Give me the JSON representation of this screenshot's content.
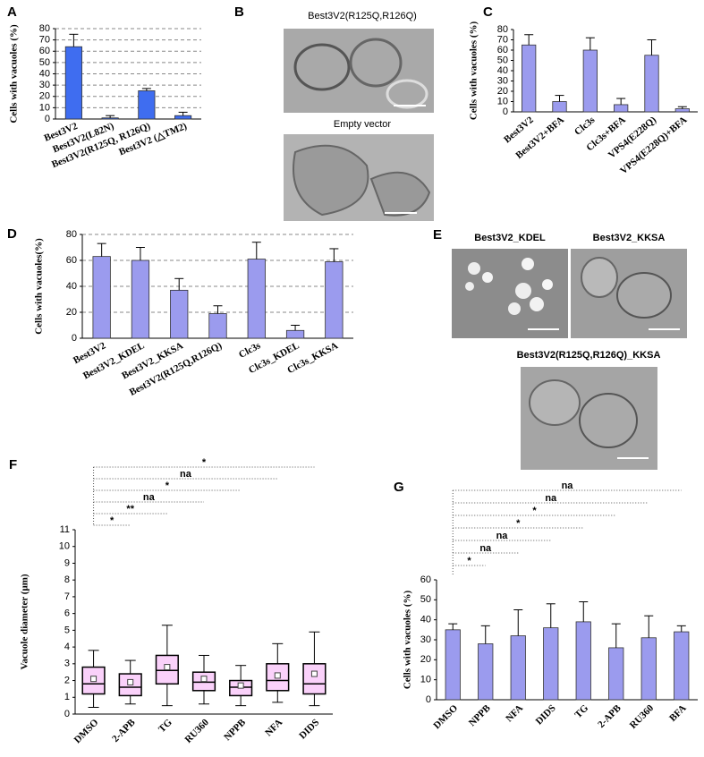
{
  "chart_data": [
    {
      "type": "bar",
      "panel": "A",
      "y_label": "Cells with vacuoles (%)",
      "categories": [
        "Best3V2",
        "Best3V2(L82N)",
        "Best3V2(R125Q, R126Q)",
        "Best3V2 (△TM2)"
      ],
      "values": [
        64,
        1,
        25,
        3
      ],
      "errors": [
        11,
        2,
        2,
        3
      ],
      "color": "#3f6df0",
      "ylim": [
        0,
        80
      ],
      "yticks": [
        0,
        10,
        20,
        30,
        40,
        50,
        60,
        70,
        80
      ],
      "grid": true
    },
    {
      "type": "bar",
      "panel": "C",
      "y_label": "Cells with vacuoles (%)",
      "categories": [
        "Best3V2",
        "Best3V2+BFA",
        "Clc3s",
        "Clc3s+BFA",
        "VPS4(E228Q)",
        "VPS4(E228Q)+BFA"
      ],
      "values": [
        65,
        10,
        60,
        7,
        55,
        3
      ],
      "errors": [
        10,
        6,
        12,
        6,
        15,
        2
      ],
      "color": "#9b9bee",
      "ylim": [
        0,
        80
      ],
      "yticks": [
        0,
        10,
        20,
        30,
        40,
        50,
        60,
        70,
        80
      ],
      "grid": false
    },
    {
      "type": "bar",
      "panel": "D",
      "y_label": "Cells with vacuoles(%)",
      "categories": [
        "Best3V2",
        "Best3V2_KDEL",
        "Best3V2_KKSA",
        "Best3V2(R125Q,R126Q)",
        "Clc3s",
        "Clc3s_KDEL",
        "Clc3s_KKSA"
      ],
      "values": [
        63,
        60,
        37,
        19,
        61,
        6,
        59
      ],
      "errors": [
        10,
        10,
        9,
        6,
        13,
        4,
        10
      ],
      "color": "#9b9bee",
      "ylim": [
        0,
        80
      ],
      "yticks": [
        0,
        20,
        40,
        60,
        80
      ],
      "grid": true
    },
    {
      "type": "box",
      "panel": "F",
      "y_label": "Vacuole diameter (μm)",
      "categories": [
        "DMSO",
        "2-APB",
        "TG",
        "RU360",
        "NPPB",
        "NFA",
        "DIDS"
      ],
      "whisker_low": [
        0.4,
        0.6,
        0.5,
        0.6,
        0.5,
        0.7,
        0.5
      ],
      "q1": [
        1.2,
        1.1,
        1.8,
        1.4,
        1.1,
        1.4,
        1.2
      ],
      "median": [
        1.8,
        1.6,
        2.6,
        1.9,
        1.6,
        2.0,
        1.8
      ],
      "q3": [
        2.8,
        2.4,
        3.5,
        2.5,
        2.0,
        3.0,
        3.0
      ],
      "whisker_high": [
        3.8,
        3.2,
        5.3,
        3.5,
        2.9,
        4.2,
        4.9
      ],
      "mean": [
        2.1,
        1.9,
        2.8,
        2.1,
        1.7,
        2.3,
        2.4
      ],
      "color": "#f07cf0",
      "ylim": [
        0,
        11
      ],
      "yticks": [
        0,
        1,
        2,
        3,
        4,
        5,
        6,
        7,
        8,
        9,
        10,
        11
      ],
      "grid": false,
      "annotations": [
        {
          "text": "*",
          "to": "DIDS"
        },
        {
          "text": "na",
          "to": "NFA"
        },
        {
          "text": "*",
          "to": "NPPB"
        },
        {
          "text": "na",
          "to": "RU360"
        },
        {
          "text": "**",
          "to": "TG"
        },
        {
          "text": "*",
          "to": "2-APB"
        }
      ]
    },
    {
      "type": "bar",
      "panel": "G",
      "y_label": "Cells with vacuoles (%)",
      "categories": [
        "DMSO",
        "NPPB",
        "NFA",
        "DIDS",
        "TG",
        "2-APB",
        "RU360",
        "BFA"
      ],
      "values": [
        35,
        28,
        32,
        36,
        39,
        26,
        31,
        34
      ],
      "errors": [
        3,
        9,
        13,
        12,
        10,
        12,
        11,
        3
      ],
      "color": "#9b9bee",
      "ylim": [
        0,
        60
      ],
      "yticks": [
        0,
        10,
        20,
        30,
        40,
        50,
        60
      ],
      "grid": false,
      "annotations": [
        {
          "text": "na",
          "to": "BFA"
        },
        {
          "text": "na",
          "to": "RU360"
        },
        {
          "text": "*",
          "to": "2-APB"
        },
        {
          "text": "*",
          "to": "TG"
        },
        {
          "text": "na",
          "to": "DIDS"
        },
        {
          "text": "na",
          "to": "NFA"
        },
        {
          "text": "*",
          "to": "NPPB"
        }
      ]
    }
  ],
  "micrographs": [
    {
      "panel": "B",
      "captions": [
        "Best3V2(R125Q,R126Q)",
        "Empty vector"
      ]
    },
    {
      "panel": "E",
      "captions": [
        "Best3V2_KDEL",
        "Best3V2_KKSA",
        "Best3V2(R125Q,R126Q)_KKSA"
      ]
    }
  ]
}
